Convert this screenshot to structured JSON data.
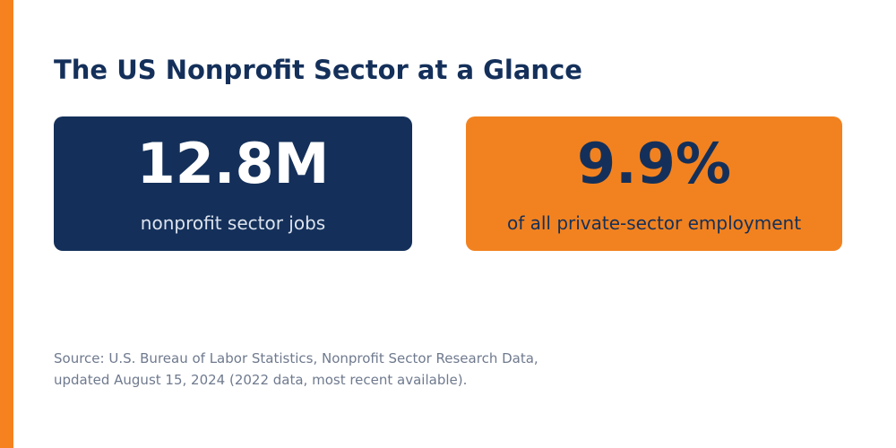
{
  "title": "The US Nonprofit Sector at a Glance",
  "stats": [
    {
      "value": "12.8M",
      "label": "nonprofit sector jobs"
    },
    {
      "value": "9.9%",
      "label": "of all private-sector employment"
    }
  ],
  "source": {
    "line1": "Source: U.S. Bureau of Labor Statistics, Nonprofit Sector Research Data,",
    "line2": "updated August 15, 2024 (2022 data, most recent available)."
  },
  "colors": {
    "navy": "#14305a",
    "orange": "#f2821f",
    "muted_text": "#6f7a8e"
  }
}
